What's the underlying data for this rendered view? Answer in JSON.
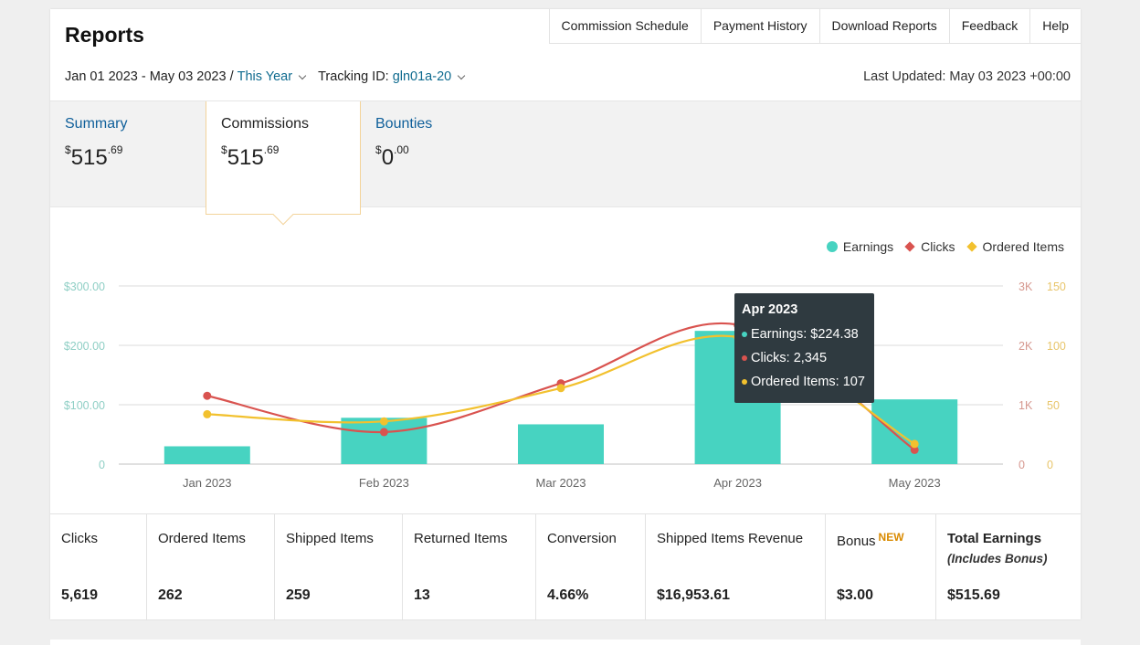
{
  "header": {
    "title": "Reports",
    "nav": [
      "Commission Schedule",
      "Payment History",
      "Download Reports",
      "Feedback",
      "Help"
    ]
  },
  "filters": {
    "date_range": "Jan 01 2023 - May 03 2023 / ",
    "period": "This Year",
    "tracking_label": "Tracking ID: ",
    "tracking_id": "gln01a-20",
    "last_updated": "Last Updated: May 03 2023 +00:00"
  },
  "tabs": [
    {
      "label": "Summary",
      "currency": "$",
      "whole": "515",
      "cents": ".69"
    },
    {
      "label": "Commissions",
      "currency": "$",
      "whole": "515",
      "cents": ".69"
    },
    {
      "label": "Bounties",
      "currency": "$",
      "whole": "0",
      "cents": ".00"
    }
  ],
  "active_tab": "Commissions",
  "colors": {
    "earnings": "#47d3c1",
    "clicks": "#d9534f",
    "ordered": "#f2c12e",
    "link": "#0f5f9a",
    "tooltip_bg": "#2f3a40"
  },
  "chart_data": {
    "type": "bar",
    "categories": [
      "Jan 2023",
      "Feb 2023",
      "Mar 2023",
      "Apr 2023",
      "May 2023"
    ],
    "series": [
      {
        "name": "Earnings",
        "type": "bar",
        "axis": "left",
        "values": [
          30,
          78,
          67,
          224.38,
          109
        ]
      },
      {
        "name": "Clicks",
        "type": "line",
        "axis": "right1",
        "values": [
          1150,
          540,
          1360,
          2345,
          240
        ]
      },
      {
        "name": "Ordered Items",
        "type": "line",
        "axis": "right2",
        "values": [
          42,
          36,
          64,
          107,
          17
        ]
      }
    ],
    "axes": {
      "left": {
        "ylim": [
          0,
          300
        ],
        "ticks": [
          0,
          100,
          200,
          300
        ],
        "tick_labels": [
          "0",
          "$100.00",
          "$200.00",
          "$300.00"
        ]
      },
      "right1": {
        "ylim": [
          0,
          3000
        ],
        "ticks": [
          0,
          1000,
          2000,
          3000
        ],
        "tick_labels": [
          "0",
          "1K",
          "2K",
          "3K"
        ]
      },
      "right2": {
        "ylim": [
          0,
          150
        ],
        "ticks": [
          0,
          50,
          100,
          150
        ],
        "tick_labels": [
          "0",
          "50",
          "100",
          "150"
        ]
      }
    },
    "legend": {
      "placement": "top-right",
      "entries": [
        "Earnings",
        "Clicks",
        "Ordered Items"
      ]
    },
    "grid": true,
    "tooltip": {
      "title": "Apr 2023",
      "rows": [
        "Earnings: $224.38",
        "Clicks: 2,345",
        "Ordered Items: 107"
      ]
    }
  },
  "stats": [
    {
      "label": "Clicks",
      "value": "5,619"
    },
    {
      "label": "Ordered Items",
      "value": "262"
    },
    {
      "label": "Shipped Items",
      "value": "259"
    },
    {
      "label": "Returned Items",
      "value": "13"
    },
    {
      "label": "Conversion",
      "value": "4.66%"
    },
    {
      "label": "Shipped Items Revenue",
      "value": "$16,953.61"
    },
    {
      "label": "Bonus",
      "badge": "NEW",
      "value": "$3.00"
    },
    {
      "label": "Total Earnings",
      "sub": "(Includes Bonus)",
      "value": "$515.69"
    }
  ]
}
